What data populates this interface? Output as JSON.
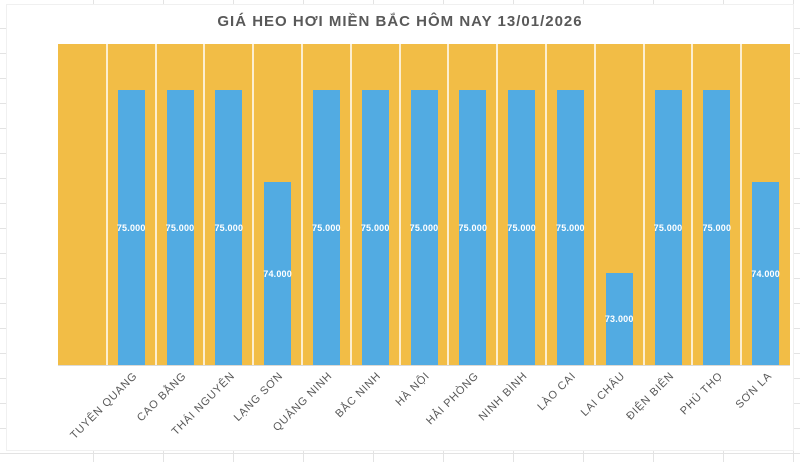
{
  "chart_data": {
    "type": "bar",
    "title": "GIÁ HEO HƠI MIỀN BẮC HÔM NAY 13/01/2026",
    "categories": [
      "TUYÊN QUANG",
      "CAO BẰNG",
      "THÁI NGUYÊN",
      "LẠNG SƠN",
      "QUẢNG NINH",
      "BẮC NINH",
      "HÀ NỘI",
      "HẢI PHÒNG",
      "NINH BÌNH",
      "LÀO CAI",
      "LAI CHÂU",
      "ĐIỆN BIÊN",
      "PHÚ THỌ",
      "SƠN LA"
    ],
    "values": [
      75000,
      75000,
      75000,
      74000,
      75000,
      75000,
      75000,
      75000,
      75000,
      75000,
      73000,
      75000,
      75000,
      74000
    ],
    "value_labels": [
      "75.000",
      "75.000",
      "75.000",
      "74.000",
      "75.000",
      "75.000",
      "75.000",
      "75.000",
      "75.000",
      "75.000",
      "73.000",
      "75.000",
      "75.000",
      "74.000"
    ],
    "ylim": [
      72000,
      75500
    ],
    "xlabel": "",
    "ylabel": "",
    "legend": "none",
    "axes_visible": false,
    "leading_empty_categories": 1,
    "colors": {
      "bar": "#52ABE2",
      "plot_background": "#F2BD46",
      "value_label": "#FFFFFF",
      "title": "#595959",
      "category_label": "#595959",
      "separator": "rgba(255,255,255,0.75)",
      "axis_line": "#DCDAD6",
      "sheet_gridline": "#E3E3E3"
    }
  }
}
